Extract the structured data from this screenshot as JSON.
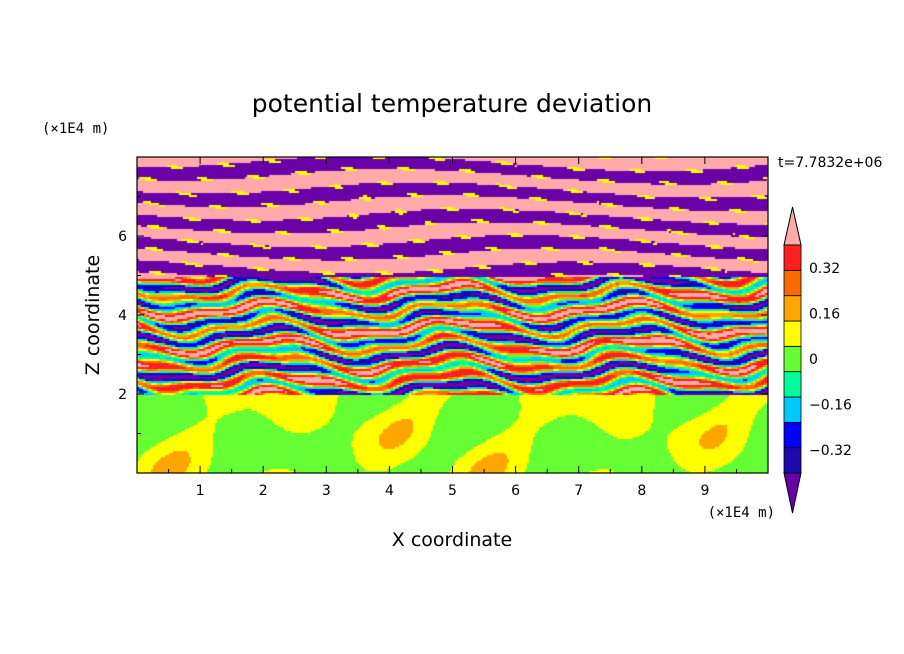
{
  "chart_data": {
    "type": "heatmap",
    "title": "potential temperature deviation",
    "xlabel": "X coordinate",
    "ylabel": "Z coordinate",
    "x_unit": "(×1E4 m)",
    "y_unit": "(×1E4 m)",
    "x_ticks": [
      "1",
      "2",
      "3",
      "4",
      "5",
      "6",
      "7",
      "8",
      "9"
    ],
    "y_ticks": [
      "2",
      "4",
      "6"
    ],
    "xlim": [
      0,
      10
    ],
    "ylim": [
      0,
      8
    ],
    "time_label": "t=7.7832e+06",
    "colorbar": {
      "levels": [
        -0.4,
        -0.32,
        -0.24,
        -0.16,
        -0.08,
        0,
        0.08,
        0.16,
        0.24,
        0.32,
        0.4
      ],
      "tick_labels": [
        "0.32",
        "0.16",
        "0",
        "−0.16",
        "−0.32"
      ],
      "tick_values": [
        0.32,
        0.16,
        0,
        -0.16,
        -0.32
      ],
      "colors_low_to_high": [
        "#6a00a8",
        "#1a0ab0",
        "#0000ff",
        "#00c8ff",
        "#00ff9a",
        "#66ff33",
        "#ffff00",
        "#ffa500",
        "#ff6a00",
        "#ff2020",
        "#ffaaaa"
      ],
      "extend": "both"
    },
    "fields": {
      "lower_layer": {
        "z_range": [
          0,
          2
        ],
        "dominant_values": [
          0.0,
          0.04
        ],
        "pattern": "smooth green blobs"
      },
      "transition_layer": {
        "z_range": [
          2,
          5
        ],
        "values_range": [
          -0.4,
          0.4
        ],
        "pattern": "multicolor filaments"
      },
      "upper_layer": {
        "z_range": [
          5,
          8
        ],
        "dominant_values": [
          -0.4,
          0.4
        ],
        "pattern": "alternating pink and purple horizontal bands"
      }
    }
  }
}
